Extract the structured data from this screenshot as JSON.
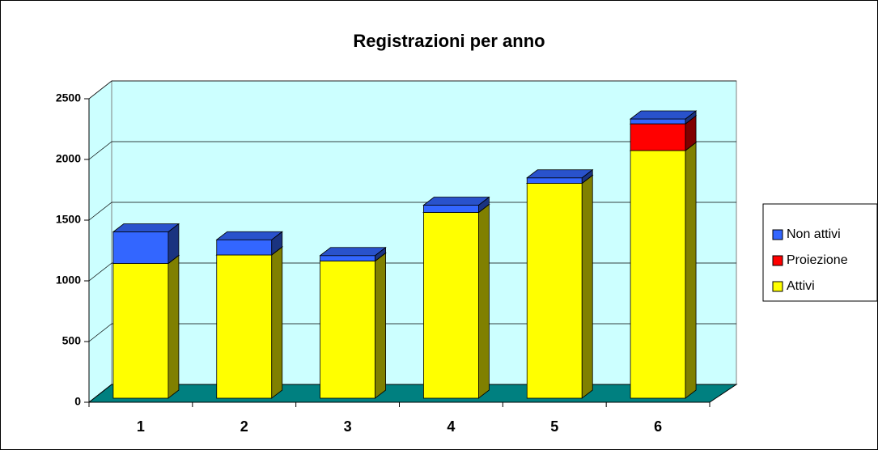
{
  "chart_data": {
    "type": "bar3d_stacked",
    "title": "Registrazioni per anno",
    "categories": [
      "1",
      "2",
      "3",
      "4",
      "5",
      "6"
    ],
    "series": [
      {
        "name": "Attivi",
        "color": "#ffff00",
        "values": [
          1110,
          1180,
          1130,
          1530,
          1770,
          2040
        ]
      },
      {
        "name": "Proiezione",
        "color": "#ff0000",
        "values": [
          0,
          0,
          0,
          0,
          0,
          220
        ]
      },
      {
        "name": "Non attivi",
        "color": "#3366ff",
        "values": [
          260,
          125,
          45,
          60,
          45,
          40
        ]
      }
    ],
    "ylim": [
      0,
      2500
    ],
    "yticks": [
      0,
      500,
      1000,
      1500,
      2000,
      2500
    ],
    "grid": true
  }
}
